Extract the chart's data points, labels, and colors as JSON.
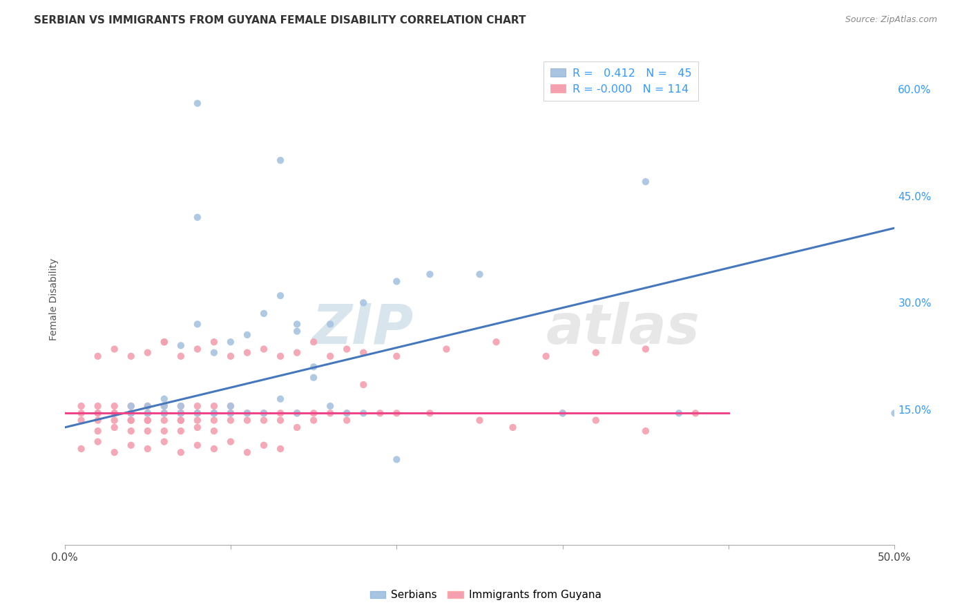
{
  "title": "SERBIAN VS IMMIGRANTS FROM GUYANA FEMALE DISABILITY CORRELATION CHART",
  "source": "Source: ZipAtlas.com",
  "ylabel": "Female Disability",
  "xlim": [
    0.0,
    0.5
  ],
  "ylim": [
    -0.04,
    0.65
  ],
  "yticks": [
    0.15,
    0.3,
    0.45,
    0.6
  ],
  "ytick_labels": [
    "15.0%",
    "30.0%",
    "45.0%",
    "60.0%"
  ],
  "xticks": [
    0.0,
    0.1,
    0.2,
    0.3,
    0.4,
    0.5
  ],
  "xtick_labels": [
    "0.0%",
    "",
    "",
    "",
    "",
    "50.0%"
  ],
  "blue_color": "#A8C4E0",
  "pink_color": "#F4A0B0",
  "line_blue": "#4477BB",
  "line_pink": "#EE4488",
  "blue_line_x0": 0.0,
  "blue_line_y0": 0.125,
  "blue_line_x1": 0.5,
  "blue_line_y1": 0.405,
  "pink_line_y": 0.145,
  "serbian_x": [
    0.06,
    0.04,
    0.07,
    0.08,
    0.1,
    0.09,
    0.08,
    0.07,
    0.05,
    0.06,
    0.1,
    0.09,
    0.11,
    0.12,
    0.1,
    0.13,
    0.14,
    0.14,
    0.15,
    0.16,
    0.17,
    0.18,
    0.2,
    0.22,
    0.25,
    0.3,
    0.35,
    0.37,
    0.5,
    0.13,
    0.08,
    0.08,
    0.09,
    0.07,
    0.06,
    0.05,
    0.04,
    0.12,
    0.15,
    0.18,
    0.2,
    0.14,
    0.13,
    0.11,
    0.16
  ],
  "serbian_y": [
    0.145,
    0.145,
    0.145,
    0.145,
    0.145,
    0.23,
    0.27,
    0.24,
    0.145,
    0.155,
    0.155,
    0.145,
    0.255,
    0.145,
    0.245,
    0.31,
    0.26,
    0.27,
    0.195,
    0.27,
    0.145,
    0.3,
    0.33,
    0.34,
    0.34,
    0.145,
    0.47,
    0.145,
    0.145,
    0.5,
    0.42,
    0.58,
    0.145,
    0.155,
    0.165,
    0.155,
    0.155,
    0.285,
    0.21,
    0.145,
    0.08,
    0.145,
    0.165,
    0.145,
    0.155
  ],
  "guyana_x": [
    0.01,
    0.01,
    0.01,
    0.02,
    0.02,
    0.02,
    0.02,
    0.02,
    0.03,
    0.03,
    0.03,
    0.03,
    0.03,
    0.04,
    0.04,
    0.04,
    0.04,
    0.04,
    0.04,
    0.05,
    0.05,
    0.05,
    0.05,
    0.05,
    0.05,
    0.06,
    0.06,
    0.06,
    0.06,
    0.06,
    0.06,
    0.07,
    0.07,
    0.07,
    0.07,
    0.07,
    0.07,
    0.07,
    0.08,
    0.08,
    0.08,
    0.08,
    0.08,
    0.09,
    0.09,
    0.09,
    0.09,
    0.1,
    0.1,
    0.1,
    0.1,
    0.11,
    0.11,
    0.12,
    0.12,
    0.13,
    0.13,
    0.14,
    0.14,
    0.15,
    0.15,
    0.16,
    0.17,
    0.17,
    0.18,
    0.19,
    0.2,
    0.22,
    0.25,
    0.27,
    0.3,
    0.32,
    0.35,
    0.38,
    0.02,
    0.03,
    0.04,
    0.05,
    0.06,
    0.07,
    0.08,
    0.09,
    0.1,
    0.11,
    0.12,
    0.13,
    0.14,
    0.15,
    0.16,
    0.17,
    0.18,
    0.2,
    0.23,
    0.26,
    0.29,
    0.32,
    0.35,
    0.01,
    0.02,
    0.03,
    0.04,
    0.05,
    0.06,
    0.07,
    0.08,
    0.09,
    0.1,
    0.11,
    0.12,
    0.13
  ],
  "guyana_y": [
    0.145,
    0.135,
    0.155,
    0.145,
    0.135,
    0.155,
    0.12,
    0.145,
    0.145,
    0.135,
    0.155,
    0.145,
    0.125,
    0.145,
    0.135,
    0.155,
    0.145,
    0.12,
    0.135,
    0.145,
    0.135,
    0.155,
    0.12,
    0.145,
    0.135,
    0.245,
    0.145,
    0.155,
    0.135,
    0.145,
    0.12,
    0.145,
    0.135,
    0.155,
    0.145,
    0.12,
    0.145,
    0.135,
    0.145,
    0.135,
    0.155,
    0.145,
    0.125,
    0.145,
    0.135,
    0.155,
    0.12,
    0.145,
    0.135,
    0.155,
    0.145,
    0.145,
    0.135,
    0.145,
    0.135,
    0.145,
    0.135,
    0.145,
    0.125,
    0.145,
    0.135,
    0.145,
    0.145,
    0.135,
    0.185,
    0.145,
    0.145,
    0.145,
    0.135,
    0.125,
    0.145,
    0.135,
    0.12,
    0.145,
    0.225,
    0.235,
    0.225,
    0.23,
    0.245,
    0.225,
    0.235,
    0.245,
    0.225,
    0.23,
    0.235,
    0.225,
    0.23,
    0.245,
    0.225,
    0.235,
    0.23,
    0.225,
    0.235,
    0.245,
    0.225,
    0.23,
    0.235,
    0.095,
    0.105,
    0.09,
    0.1,
    0.095,
    0.105,
    0.09,
    0.1,
    0.095,
    0.105,
    0.09,
    0.1,
    0.095
  ]
}
